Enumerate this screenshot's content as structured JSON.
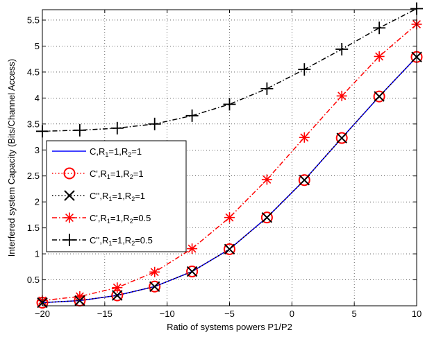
{
  "chart_data": {
    "type": "line",
    "title": "",
    "xlabel": "Ratio of systems powers P1/P2",
    "ylabel": "Interfered system Capacity (Bits/Channel Access)",
    "xlim": [
      -20,
      10
    ],
    "ylim": [
      0,
      5.7
    ],
    "xticks": [
      -20,
      -15,
      -10,
      -5,
      0,
      5,
      10
    ],
    "xtick_labels": [
      "−20",
      "−15",
      "−10",
      "−5",
      "0",
      "5",
      "10"
    ],
    "yticks": [
      0.5,
      1,
      1.5,
      2,
      2.5,
      3,
      3.5,
      4,
      4.5,
      5,
      5.5
    ],
    "ytick_labels": [
      "0.5",
      "1",
      "1.5",
      "2",
      "2.5",
      "3",
      "3.5",
      "4",
      "4.5",
      "5",
      "5.5"
    ],
    "grid": true,
    "legend_position": "left",
    "x": [
      -20,
      -17,
      -14,
      -11,
      -8,
      -5,
      -2,
      1,
      4,
      7,
      10
    ],
    "series": [
      {
        "name": "C,R1=1,R2=1",
        "legend": {
          "prefix": "C,R",
          "sub1": "1",
          "mid": "=1,R",
          "sub2": "2",
          "suffix": "=1"
        },
        "color": "#0000ff",
        "line": "solid",
        "marker": "none",
        "values": [
          0.06,
          0.1,
          0.2,
          0.37,
          0.66,
          1.09,
          1.7,
          2.42,
          3.23,
          4.03,
          4.79
        ]
      },
      {
        "name": "C',R1=1,R2=1",
        "legend": {
          "prefix": "C',R",
          "sub1": "1",
          "mid": "=1,R",
          "sub2": "2",
          "suffix": "=1"
        },
        "color": "#ff0000",
        "line": "dotted",
        "marker": "circle",
        "values": [
          0.06,
          0.1,
          0.2,
          0.37,
          0.66,
          1.09,
          1.7,
          2.42,
          3.23,
          4.03,
          4.79
        ]
      },
      {
        "name": "C'',R1=1,R2=1",
        "legend": {
          "prefix": "C'',R",
          "sub1": "1",
          "mid": "=1,R",
          "sub2": "2",
          "suffix": "=1"
        },
        "color": "#000000",
        "line": "dotted",
        "marker": "x",
        "values": [
          0.06,
          0.1,
          0.2,
          0.37,
          0.66,
          1.09,
          1.7,
          2.42,
          3.23,
          4.03,
          4.79
        ]
      },
      {
        "name": "C',R1=1,R2=0.5",
        "legend": {
          "prefix": "C',R",
          "sub1": "1",
          "mid": "=1,R",
          "sub2": "2",
          "suffix": "=0.5"
        },
        "color": "#ff0000",
        "line": "dashdot",
        "marker": "star",
        "values": [
          0.1,
          0.18,
          0.35,
          0.65,
          1.1,
          1.7,
          2.43,
          3.24,
          4.04,
          4.8,
          5.42
        ]
      },
      {
        "name": "C'',R1=1,R2=0.5",
        "legend": {
          "prefix": "C'',R",
          "sub1": "1",
          "mid": "=1,R",
          "sub2": "2",
          "suffix": "=0.5"
        },
        "color": "#000000",
        "line": "dashdot",
        "marker": "plus",
        "values": [
          3.36,
          3.38,
          3.42,
          3.5,
          3.66,
          3.88,
          4.18,
          4.55,
          4.94,
          5.35,
          5.72
        ]
      }
    ]
  }
}
